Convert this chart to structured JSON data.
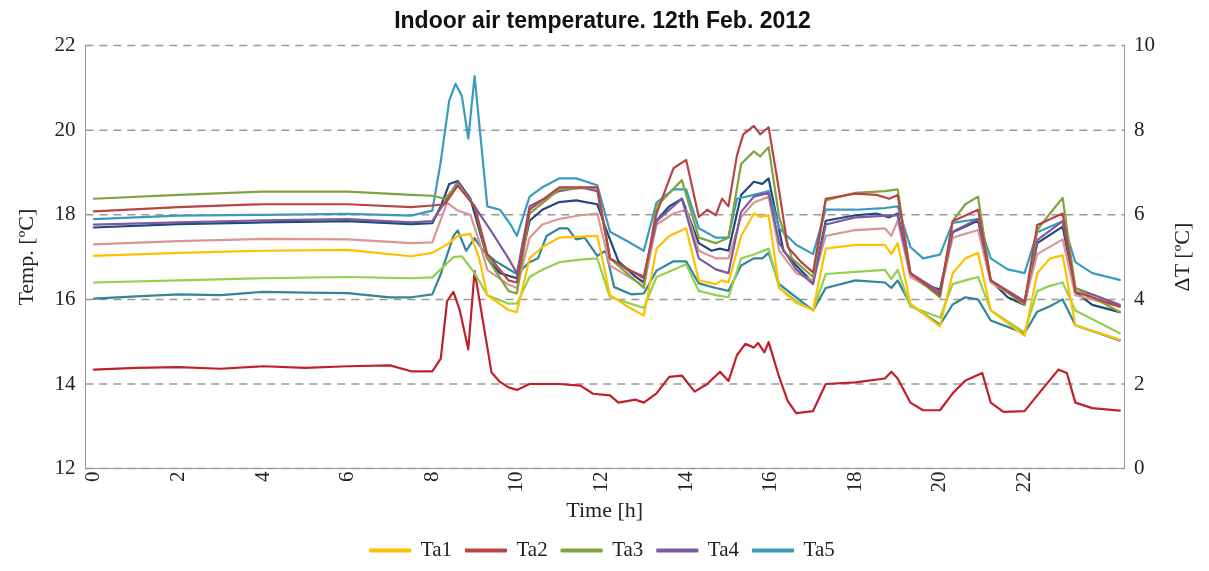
{
  "chart_data": {
    "type": "line",
    "title": "Indoor air temperature. 12th Feb. 2012",
    "xlabel": "Time [h]",
    "ylabel": "Temp. [ºC]",
    "y2label": "ΔT [ºC]",
    "xlim": [
      -0.2,
      24.35
    ],
    "xticks": [
      0,
      2,
      4,
      6,
      8,
      10,
      12,
      14,
      16,
      18,
      20,
      22
    ],
    "ylim": [
      12,
      22
    ],
    "yticks": [
      12,
      14,
      16,
      18,
      20,
      22
    ],
    "y2lim": [
      0,
      10
    ],
    "y2ticks": [
      0,
      2,
      4,
      6,
      8,
      10
    ],
    "grid": "y",
    "legend": "bottom",
    "marker": "none",
    "line_style": "solid",
    "series": [
      {
        "name": "Ta1",
        "color": "#ffc000",
        "x": [
          0,
          2,
          4,
          6,
          7.5,
          8.0,
          8.4,
          8.6,
          8.9,
          9.1,
          9.3,
          9.8,
          10.0,
          10.3,
          10.6,
          11.0,
          11.9,
          12.2,
          12.6,
          13.0,
          13.3,
          13.6,
          14.0,
          14.3,
          14.7,
          14.85,
          15.0,
          15.3,
          15.6,
          15.75,
          15.95,
          16.2,
          16.6,
          17.0,
          17.3,
          18.0,
          18.7,
          18.85,
          19.0,
          19.3,
          20.0,
          20.3,
          20.6,
          20.9,
          21.2,
          22.0,
          22.3,
          22.6,
          22.9,
          23.2,
          24.25
        ],
        "values": [
          17.03,
          17.1,
          17.15,
          17.17,
          17.02,
          17.1,
          17.33,
          17.5,
          17.55,
          17.0,
          16.1,
          15.75,
          15.7,
          16.97,
          17.24,
          17.46,
          17.5,
          16.1,
          15.84,
          15.62,
          17.2,
          17.5,
          17.68,
          16.45,
          16.36,
          16.45,
          16.4,
          17.5,
          18.03,
          17.95,
          17.99,
          16.27,
          15.92,
          15.75,
          17.2,
          17.29,
          17.29,
          17.07,
          17.33,
          15.9,
          15.36,
          16.62,
          16.97,
          17.1,
          15.74,
          15.14,
          16.62,
          16.97,
          17.04,
          15.39,
          15.05
        ]
      },
      {
        "name": "Ta2",
        "color": "#b94444",
        "x": [
          0,
          2,
          4,
          6,
          7.5,
          8.0,
          8.3,
          8.6,
          9.0,
          9.3,
          9.8,
          10.0,
          10.3,
          11.0,
          11.9,
          12.2,
          13.0,
          13.3,
          13.7,
          14.0,
          14.3,
          14.5,
          14.7,
          14.85,
          15.0,
          15.2,
          15.35,
          15.6,
          15.75,
          15.95,
          16.2,
          16.4,
          16.7,
          17.0,
          17.3,
          18.0,
          18.5,
          18.8,
          19.0,
          19.3,
          20.0,
          20.3,
          20.9,
          21.2,
          22.0,
          22.3,
          22.9,
          23.2,
          24.25
        ],
        "values": [
          18.08,
          18.18,
          18.25,
          18.25,
          18.18,
          18.22,
          18.25,
          18.69,
          18.2,
          17.07,
          16.45,
          16.4,
          18.12,
          18.65,
          18.65,
          16.97,
          16.5,
          18.03,
          19.1,
          19.3,
          17.95,
          18.12,
          17.99,
          18.38,
          18.2,
          19.4,
          19.9,
          20.1,
          19.9,
          20.07,
          18.56,
          17.24,
          16.9,
          16.64,
          18.38,
          18.5,
          18.47,
          18.38,
          18.47,
          16.62,
          16.1,
          17.85,
          18.12,
          16.45,
          15.92,
          17.76,
          18.03,
          16.18,
          15.83
        ]
      },
      {
        "name": "Ta3",
        "color": "#7fa33f",
        "x": [
          0,
          2,
          4,
          6,
          7.5,
          8.0,
          8.3,
          8.6,
          9.0,
          9.3,
          9.8,
          10.0,
          10.3,
          11.0,
          11.9,
          12.2,
          13.0,
          13.3,
          13.9,
          14.3,
          14.7,
          15.0,
          15.3,
          15.6,
          15.75,
          15.95,
          16.2,
          16.5,
          17.0,
          17.3,
          18.0,
          18.7,
          19.0,
          19.3,
          20.0,
          20.3,
          20.6,
          20.9,
          21.2,
          22.0,
          22.3,
          22.6,
          22.9,
          23.2,
          24.25
        ],
        "values": [
          18.38,
          18.47,
          18.55,
          18.55,
          18.47,
          18.45,
          18.38,
          18.73,
          18.2,
          16.97,
          16.2,
          16.14,
          18.03,
          18.6,
          18.65,
          16.97,
          16.27,
          18.2,
          18.82,
          17.46,
          17.33,
          17.46,
          19.2,
          19.5,
          19.38,
          19.6,
          17.94,
          16.97,
          16.53,
          18.34,
          18.52,
          18.56,
          18.6,
          16.62,
          16.05,
          17.85,
          18.25,
          18.43,
          16.45,
          15.87,
          17.64,
          18.03,
          18.4,
          16.27,
          15.7
        ]
      },
      {
        "name": "Ta4",
        "color": "#7a5b9e",
        "x": [
          0,
          2,
          4,
          6,
          7.5,
          8.0,
          8.3,
          8.6,
          9.0,
          9.4,
          9.8,
          10.0,
          10.3,
          11.0,
          11.5,
          11.9,
          12.2,
          12.6,
          13.0,
          13.3,
          13.9,
          14.3,
          14.7,
          15.0,
          15.3,
          15.6,
          15.95,
          16.2,
          16.6,
          17.0,
          17.3,
          18.0,
          19.0,
          19.3,
          20.0,
          20.3,
          20.9,
          21.2,
          22.0,
          22.3,
          22.9,
          23.2,
          24.25
        ],
        "values": [
          17.77,
          17.82,
          17.87,
          17.9,
          17.82,
          17.85,
          18.3,
          18.78,
          18.2,
          17.6,
          16.97,
          16.62,
          18.2,
          18.56,
          18.65,
          18.56,
          16.97,
          16.71,
          16.54,
          17.85,
          18.38,
          16.97,
          16.71,
          16.62,
          18.07,
          18.43,
          18.52,
          17.33,
          16.71,
          16.36,
          17.77,
          17.94,
          17.99,
          16.62,
          16.18,
          17.6,
          17.9,
          16.45,
          15.96,
          17.4,
          17.85,
          16.27,
          15.87
        ]
      },
      {
        "name": "Ta5",
        "color": "#3a9bbf",
        "x": [
          0,
          2,
          4,
          6,
          7.5,
          8.0,
          8.2,
          8.4,
          8.55,
          8.7,
          8.85,
          9.0,
          9.3,
          9.6,
          9.85,
          10.0,
          10.3,
          10.6,
          11.0,
          11.4,
          11.9,
          12.2,
          12.6,
          13.0,
          13.3,
          13.7,
          14.0,
          14.3,
          14.7,
          15.0,
          15.2,
          15.6,
          15.95,
          16.2,
          16.6,
          17.0,
          17.3,
          18.0,
          18.7,
          19.0,
          19.3,
          19.6,
          20.0,
          20.3,
          20.9,
          21.2,
          21.6,
          22.0,
          22.3,
          22.9,
          23.2,
          23.6,
          24.25
        ],
        "values": [
          17.9,
          17.98,
          18.0,
          18.02,
          17.98,
          18.1,
          19.26,
          20.7,
          21.1,
          20.8,
          19.8,
          21.28,
          18.2,
          18.12,
          17.77,
          17.5,
          18.43,
          18.65,
          18.86,
          18.86,
          18.7,
          17.6,
          17.38,
          17.15,
          18.29,
          18.6,
          18.6,
          17.68,
          17.46,
          17.46,
          18.38,
          18.47,
          18.56,
          17.68,
          17.29,
          17.07,
          18.12,
          18.12,
          18.16,
          18.2,
          17.24,
          16.97,
          17.06,
          17.81,
          17.9,
          16.97,
          16.71,
          16.62,
          17.59,
          17.85,
          16.88,
          16.62,
          16.46
        ]
      },
      {
        "color": "#d99694",
        "x": [
          0,
          2,
          4,
          6,
          7.5,
          8.0,
          8.35,
          8.6,
          8.9,
          9.1,
          9.3,
          9.8,
          10.0,
          10.3,
          10.6,
          11.0,
          11.5,
          11.9,
          12.2,
          13.0,
          13.3,
          13.7,
          14.0,
          14.3,
          14.7,
          15.0,
          15.3,
          15.6,
          15.95,
          16.2,
          16.6,
          17.0,
          17.3,
          18.0,
          18.7,
          18.85,
          19.0,
          19.3,
          20.0,
          20.3,
          20.9,
          21.2,
          22.0,
          22.3,
          22.9,
          23.2,
          24.25
        ],
        "values": [
          17.3,
          17.38,
          17.43,
          17.42,
          17.33,
          17.35,
          18.29,
          18.1,
          18.0,
          17.4,
          16.7,
          16.35,
          16.27,
          17.46,
          17.77,
          17.9,
          17.99,
          18.03,
          16.8,
          16.32,
          17.77,
          18.03,
          18.12,
          17.15,
          16.97,
          16.97,
          17.95,
          18.29,
          18.43,
          17.15,
          16.62,
          16.45,
          17.5,
          17.64,
          17.68,
          17.5,
          17.86,
          16.53,
          16.14,
          17.46,
          17.64,
          16.4,
          15.92,
          17.07,
          17.42,
          16.1,
          15.83
        ]
      },
      {
        "color": "#92d050",
        "x": [
          0,
          2,
          4,
          6,
          7.5,
          8.0,
          8.5,
          8.7,
          9.0,
          9.3,
          9.8,
          10.0,
          10.3,
          10.6,
          11.0,
          11.5,
          11.9,
          12.2,
          13.0,
          13.3,
          13.7,
          14.0,
          14.3,
          14.7,
          15.0,
          15.3,
          15.6,
          15.95,
          16.2,
          16.6,
          17.0,
          17.3,
          18.0,
          18.7,
          18.85,
          19.0,
          19.3,
          20.0,
          20.3,
          20.6,
          20.9,
          21.2,
          22.0,
          22.3,
          22.6,
          22.9,
          23.2,
          24.25
        ],
        "values": [
          16.4,
          16.45,
          16.5,
          16.53,
          16.5,
          16.52,
          17.0,
          17.02,
          16.62,
          16.1,
          15.9,
          15.9,
          16.53,
          16.7,
          16.88,
          16.94,
          16.97,
          16.05,
          15.8,
          16.53,
          16.7,
          16.83,
          16.2,
          16.1,
          16.05,
          16.97,
          17.06,
          17.2,
          16.27,
          15.96,
          15.74,
          16.6,
          16.65,
          16.7,
          16.48,
          16.7,
          15.83,
          15.57,
          16.36,
          16.45,
          16.53,
          15.74,
          15.22,
          16.2,
          16.32,
          16.4,
          15.74,
          15.2
        ]
      },
      {
        "color": "#31859c",
        "x": [
          0,
          1,
          2,
          3,
          4,
          5,
          6,
          7,
          7.5,
          8.0,
          8.2,
          8.5,
          8.6,
          8.8,
          9.0,
          9.2,
          9.5,
          10.0,
          10.3,
          10.5,
          10.7,
          11.0,
          11.2,
          11.4,
          11.6,
          11.9,
          12.1,
          12.3,
          12.7,
          13.0,
          13.3,
          13.7,
          14.0,
          14.3,
          14.7,
          15.0,
          15.3,
          15.6,
          15.8,
          15.95,
          16.2,
          16.6,
          17.0,
          17.3,
          18.0,
          18.7,
          18.85,
          19.0,
          19.3,
          20.0,
          20.3,
          20.6,
          20.9,
          21.2,
          22.0,
          22.3,
          22.6,
          22.9,
          23.2,
          24.25
        ],
        "values": [
          16.02,
          16.07,
          16.12,
          16.1,
          16.18,
          16.16,
          16.15,
          16.05,
          16.05,
          16.12,
          16.6,
          17.5,
          17.63,
          17.15,
          17.45,
          17.15,
          16.9,
          16.6,
          16.88,
          16.97,
          17.5,
          17.68,
          17.68,
          17.42,
          17.46,
          17.03,
          17.15,
          16.29,
          16.12,
          16.14,
          16.68,
          16.9,
          16.9,
          16.38,
          16.27,
          16.2,
          16.8,
          16.97,
          16.97,
          17.1,
          16.36,
          16.05,
          15.74,
          16.27,
          16.45,
          16.4,
          16.27,
          16.45,
          15.88,
          15.4,
          15.88,
          16.05,
          16.0,
          15.5,
          15.2,
          15.71,
          15.84,
          16.0,
          15.39,
          15.03
        ]
      },
      {
        "color": "#1f497d",
        "x": [
          0,
          2,
          4,
          6,
          7.5,
          8.0,
          8.2,
          8.4,
          8.6,
          8.9,
          9.1,
          9.3,
          9.6,
          10.0,
          10.3,
          10.6,
          11.0,
          11.4,
          11.9,
          12.1,
          12.4,
          12.8,
          13.0,
          13.3,
          13.6,
          13.9,
          14.3,
          14.6,
          14.8,
          15.0,
          15.3,
          15.6,
          15.8,
          15.95,
          16.3,
          16.6,
          17.0,
          17.3,
          18.0,
          18.5,
          18.8,
          19.0,
          19.3,
          19.6,
          20.0,
          20.3,
          20.9,
          21.2,
          21.6,
          22.0,
          22.3,
          22.9,
          23.2,
          23.6,
          24.25
        ],
        "values": [
          17.7,
          17.78,
          17.82,
          17.85,
          17.78,
          17.8,
          18.2,
          18.73,
          18.8,
          18.38,
          17.68,
          16.97,
          16.62,
          16.5,
          17.86,
          18.12,
          18.3,
          18.34,
          18.25,
          17.68,
          16.9,
          16.54,
          16.4,
          17.86,
          18.2,
          18.38,
          17.33,
          17.15,
          17.2,
          17.15,
          18.47,
          18.78,
          18.73,
          18.86,
          17.15,
          16.8,
          16.4,
          17.86,
          17.99,
          18.03,
          17.94,
          18.03,
          16.62,
          16.36,
          16.23,
          17.59,
          17.86,
          16.45,
          16.05,
          15.87,
          17.33,
          17.72,
          16.18,
          15.87,
          15.7
        ]
      },
      {
        "color": "#c0202a",
        "axis": "y2",
        "x": [
          0,
          1,
          2,
          3,
          4,
          5,
          6,
          7,
          7.5,
          8.0,
          8.2,
          8.35,
          8.5,
          8.65,
          8.85,
          9.0,
          9.4,
          9.6,
          9.8,
          10.0,
          10.3,
          11.0,
          11.5,
          11.8,
          12.2,
          12.4,
          12.8,
          13.0,
          13.3,
          13.6,
          13.9,
          14.2,
          14.5,
          14.8,
          15.0,
          15.2,
          15.4,
          15.6,
          15.7,
          15.85,
          15.95,
          16.2,
          16.4,
          16.6,
          17.0,
          17.3,
          18.0,
          18.7,
          18.85,
          19.0,
          19.3,
          19.6,
          20.0,
          20.3,
          20.6,
          21.0,
          21.2,
          21.5,
          22.0,
          22.3,
          22.8,
          23.0,
          23.2,
          23.6,
          24.25
        ],
        "values": [
          2.34,
          2.38,
          2.4,
          2.36,
          2.42,
          2.38,
          2.42,
          2.44,
          2.3,
          2.3,
          2.6,
          3.96,
          4.18,
          3.74,
          2.82,
          4.67,
          2.27,
          2.05,
          1.92,
          1.86,
          2.0,
          2.0,
          1.96,
          1.77,
          1.73,
          1.56,
          1.63,
          1.56,
          1.78,
          2.17,
          2.2,
          1.82,
          2.0,
          2.29,
          2.07,
          2.68,
          2.95,
          2.86,
          2.97,
          2.75,
          2.99,
          2.16,
          1.6,
          1.31,
          1.36,
          2.0,
          2.04,
          2.13,
          2.29,
          2.13,
          1.56,
          1.38,
          1.38,
          1.78,
          2.08,
          2.26,
          1.56,
          1.34,
          1.36,
          1.73,
          2.34,
          2.26,
          1.56,
          1.43,
          1.37
        ]
      }
    ]
  }
}
